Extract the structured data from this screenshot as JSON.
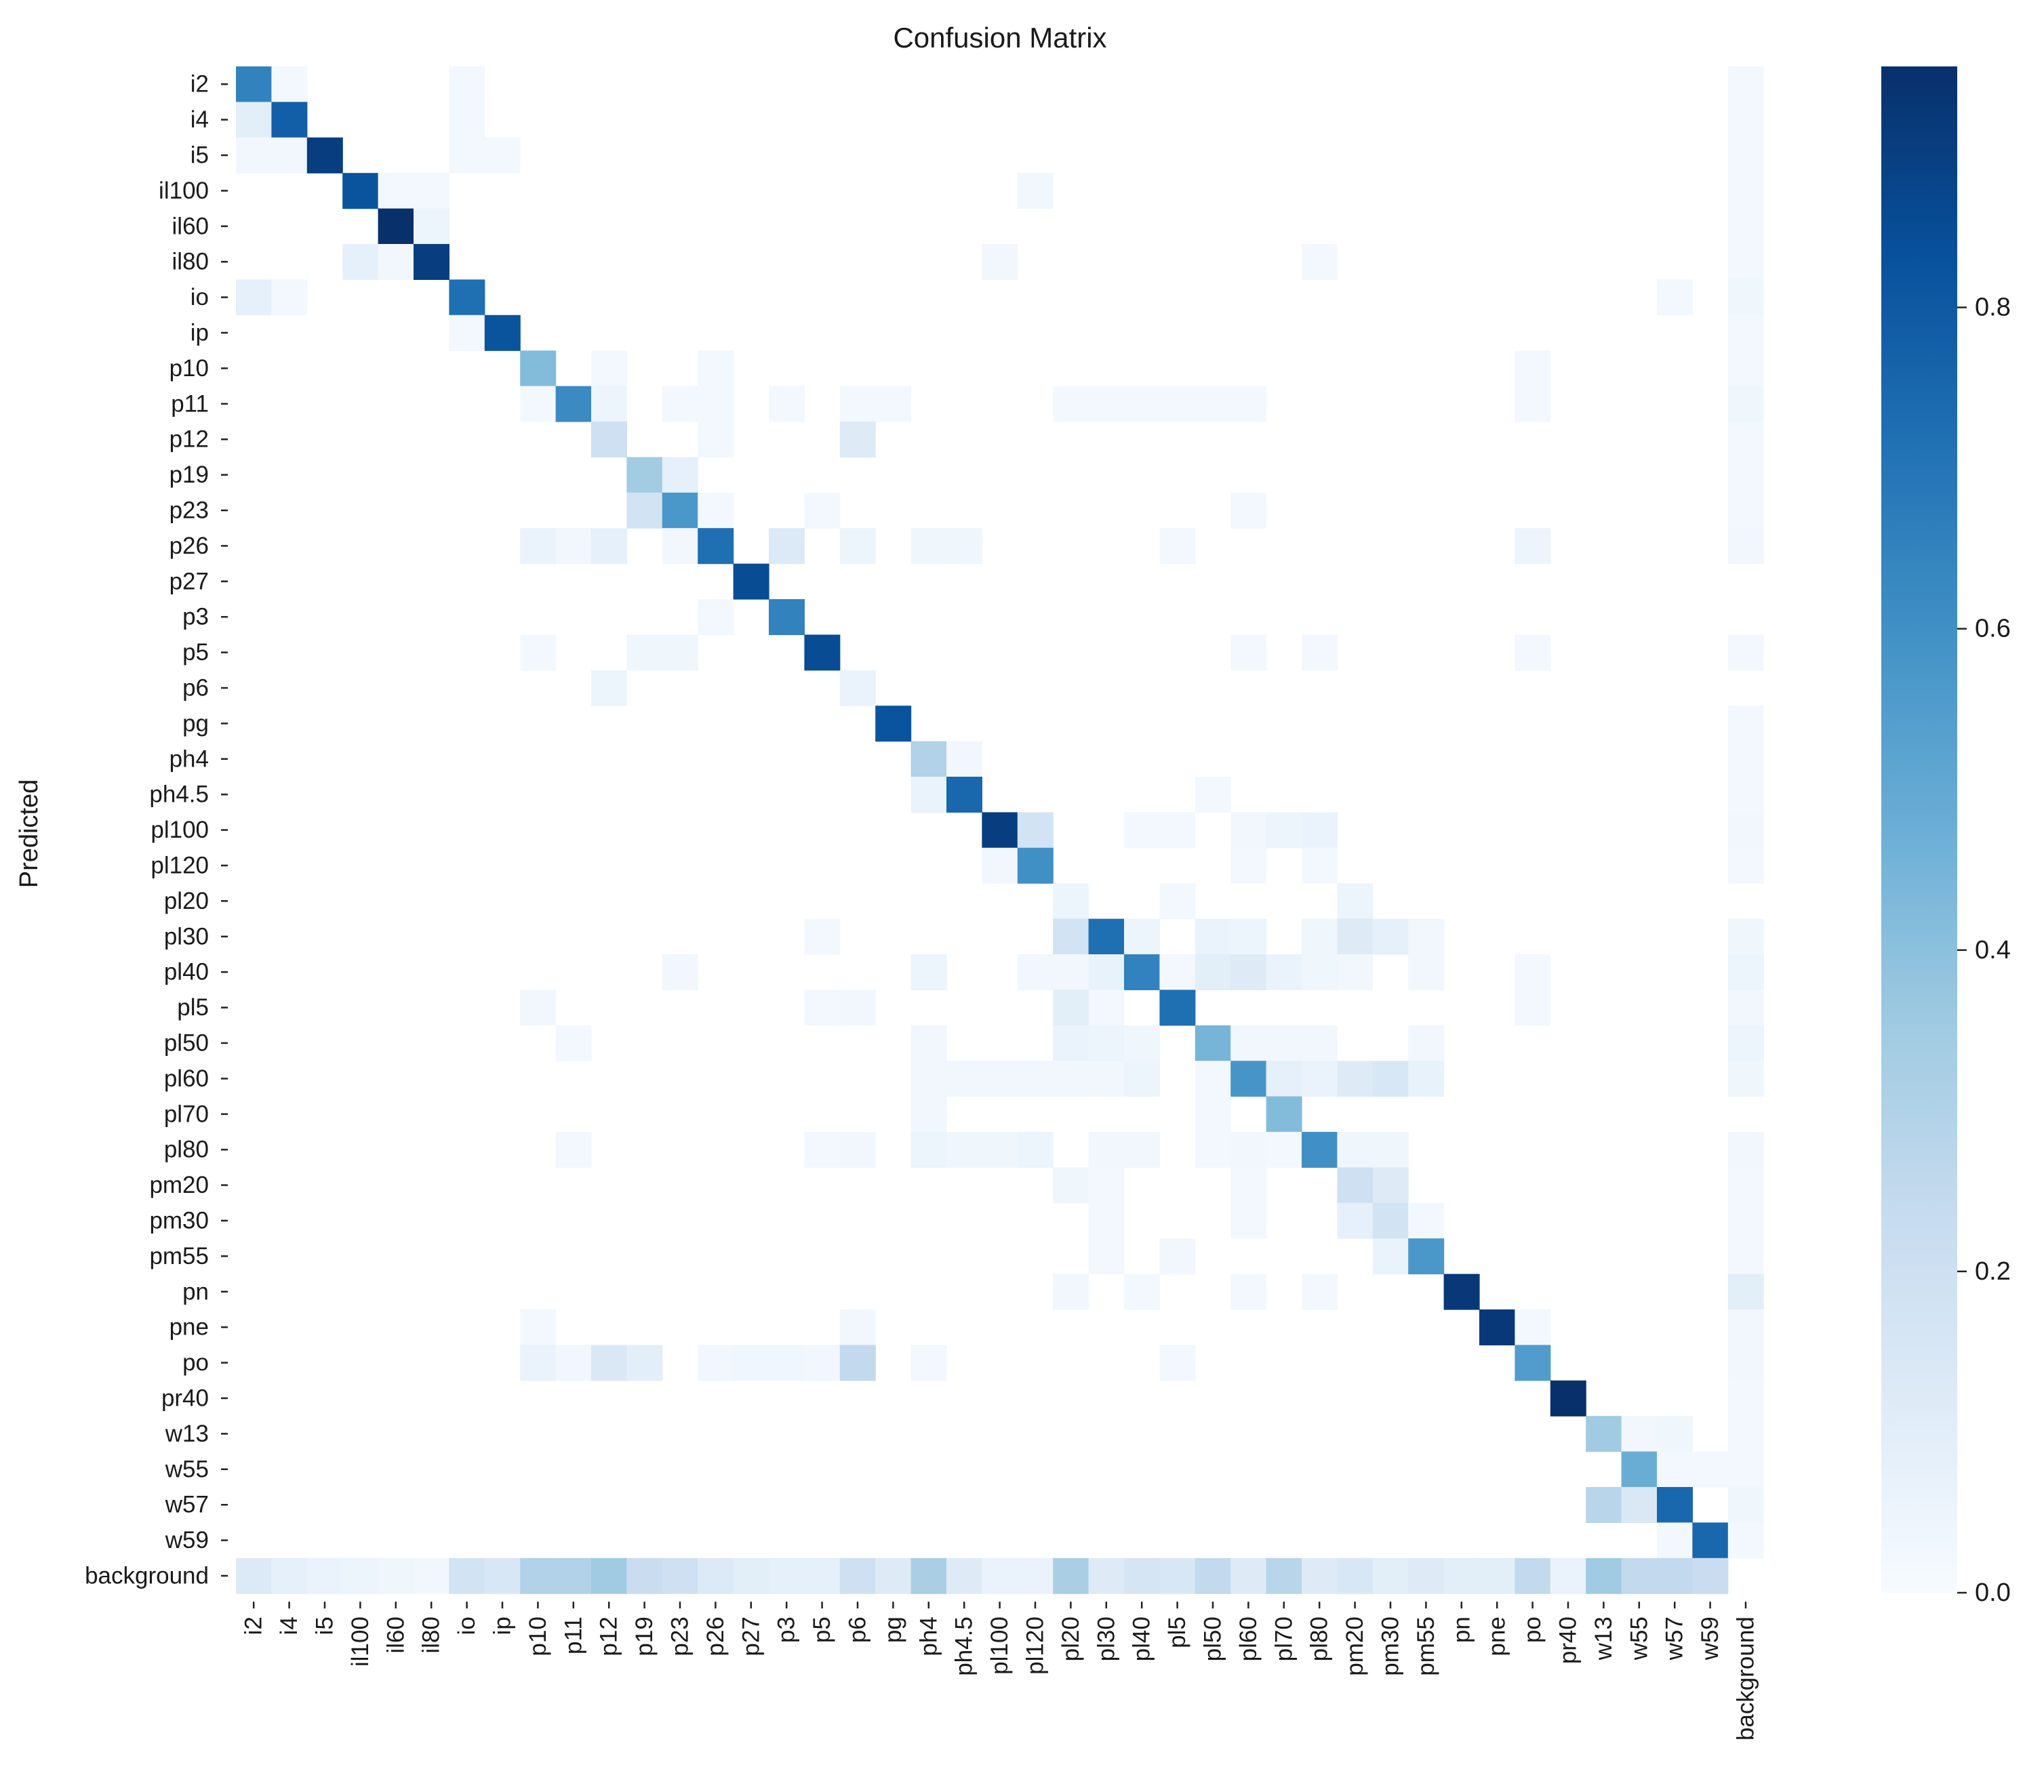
{
  "chart_data": {
    "type": "heatmap",
    "title": "Confusion Matrix",
    "ylabel": "Predicted",
    "xlabel": "",
    "colormap": "Blues",
    "vmin": 0.0,
    "vmax": 0.95,
    "colorbar_ticks": [
      0.0,
      0.2,
      0.4,
      0.6,
      0.8
    ],
    "colorbar_tick_labels": [
      "0.0",
      "0.2",
      "0.4",
      "0.6",
      "0.8"
    ],
    "labels": [
      "i2",
      "i4",
      "i5",
      "il100",
      "il60",
      "il80",
      "io",
      "ip",
      "p10",
      "p11",
      "p12",
      "p19",
      "p23",
      "p26",
      "p27",
      "p3",
      "p5",
      "p6",
      "pg",
      "ph4",
      "ph4.5",
      "pl100",
      "pl120",
      "pl20",
      "pl30",
      "pl40",
      "pl5",
      "pl50",
      "pl60",
      "pl70",
      "pl80",
      "pm20",
      "pm30",
      "pm55",
      "pn",
      "pne",
      "po",
      "pr40",
      "w13",
      "w55",
      "w57",
      "w59",
      "background"
    ],
    "diagonal": [
      0.65,
      0.78,
      0.9,
      0.82,
      0.95,
      0.9,
      0.72,
      0.82,
      0.42,
      0.62,
      0.2,
      0.34,
      0.57,
      0.72,
      0.85,
      0.65,
      0.85,
      0.06,
      0.82,
      0.3,
      0.75,
      0.9,
      0.6,
      0.05,
      0.72,
      0.65,
      0.72,
      0.45,
      0.58,
      0.42,
      0.6,
      0.2,
      0.18,
      0.57,
      0.92,
      0.92,
      0.55,
      0.95,
      0.35,
      0.48,
      0.75,
      0.75,
      0
    ],
    "off_diagonal": [
      [
        0,
        1,
        0.02
      ],
      [
        0,
        6,
        0.02
      ],
      [
        1,
        0,
        0.1
      ],
      [
        1,
        6,
        0.02
      ],
      [
        2,
        0,
        0.03
      ],
      [
        2,
        1,
        0.03
      ],
      [
        2,
        6,
        0.02
      ],
      [
        2,
        7,
        0.02
      ],
      [
        3,
        4,
        0.02
      ],
      [
        3,
        5,
        0.02
      ],
      [
        3,
        22,
        0.03
      ],
      [
        4,
        5,
        0.05
      ],
      [
        5,
        3,
        0.08
      ],
      [
        5,
        4,
        0.03
      ],
      [
        5,
        21,
        0.03
      ],
      [
        5,
        30,
        0.02
      ],
      [
        6,
        0,
        0.08
      ],
      [
        6,
        1,
        0.02
      ],
      [
        6,
        40,
        0.02
      ],
      [
        7,
        6,
        0.02
      ],
      [
        8,
        10,
        0.02
      ],
      [
        8,
        13,
        0.02
      ],
      [
        8,
        36,
        0.02
      ],
      [
        9,
        8,
        0.02
      ],
      [
        9,
        10,
        0.05
      ],
      [
        9,
        12,
        0.02
      ],
      [
        9,
        13,
        0.02
      ],
      [
        9,
        15,
        0.02
      ],
      [
        9,
        17,
        0.02
      ],
      [
        9,
        18,
        0.02
      ],
      [
        9,
        23,
        0.02
      ],
      [
        9,
        24,
        0.02
      ],
      [
        9,
        25,
        0.02
      ],
      [
        9,
        26,
        0.02
      ],
      [
        9,
        27,
        0.02
      ],
      [
        9,
        28,
        0.02
      ],
      [
        9,
        36,
        0.02
      ],
      [
        10,
        13,
        0.02
      ],
      [
        10,
        17,
        0.12
      ],
      [
        11,
        12,
        0.08
      ],
      [
        12,
        11,
        0.18
      ],
      [
        12,
        13,
        0.02
      ],
      [
        12,
        16,
        0.02
      ],
      [
        12,
        28,
        0.02
      ],
      [
        13,
        8,
        0.06
      ],
      [
        13,
        9,
        0.03
      ],
      [
        13,
        10,
        0.08
      ],
      [
        13,
        12,
        0.03
      ],
      [
        13,
        15,
        0.13
      ],
      [
        13,
        17,
        0.05
      ],
      [
        13,
        19,
        0.04
      ],
      [
        13,
        20,
        0.04
      ],
      [
        13,
        26,
        0.02
      ],
      [
        13,
        36,
        0.05
      ],
      [
        15,
        13,
        0.02
      ],
      [
        16,
        8,
        0.02
      ],
      [
        16,
        11,
        0.04
      ],
      [
        16,
        12,
        0.04
      ],
      [
        16,
        28,
        0.02
      ],
      [
        16,
        30,
        0.02
      ],
      [
        16,
        36,
        0.02
      ],
      [
        17,
        10,
        0.05
      ],
      [
        19,
        20,
        0.03
      ],
      [
        20,
        19,
        0.06
      ],
      [
        20,
        27,
        0.02
      ],
      [
        21,
        22,
        0.18
      ],
      [
        21,
        25,
        0.02
      ],
      [
        21,
        26,
        0.02
      ],
      [
        21,
        28,
        0.03
      ],
      [
        21,
        29,
        0.05
      ],
      [
        21,
        30,
        0.06
      ],
      [
        22,
        21,
        0.03
      ],
      [
        22,
        28,
        0.02
      ],
      [
        22,
        30,
        0.02
      ],
      [
        23,
        26,
        0.02
      ],
      [
        23,
        31,
        0.05
      ],
      [
        24,
        16,
        0.02
      ],
      [
        24,
        23,
        0.18
      ],
      [
        24,
        25,
        0.05
      ],
      [
        24,
        27,
        0.06
      ],
      [
        24,
        28,
        0.05
      ],
      [
        24,
        30,
        0.04
      ],
      [
        24,
        31,
        0.12
      ],
      [
        24,
        32,
        0.08
      ],
      [
        24,
        33,
        0.03
      ],
      [
        25,
        12,
        0.03
      ],
      [
        25,
        19,
        0.05
      ],
      [
        25,
        22,
        0.03
      ],
      [
        25,
        23,
        0.03
      ],
      [
        25,
        24,
        0.07
      ],
      [
        25,
        26,
        0.02
      ],
      [
        25,
        27,
        0.1
      ],
      [
        25,
        28,
        0.12
      ],
      [
        25,
        29,
        0.06
      ],
      [
        25,
        30,
        0.04
      ],
      [
        25,
        31,
        0.03
      ],
      [
        25,
        33,
        0.03
      ],
      [
        25,
        36,
        0.02
      ],
      [
        26,
        8,
        0.03
      ],
      [
        26,
        16,
        0.02
      ],
      [
        26,
        17,
        0.03
      ],
      [
        26,
        23,
        0.1
      ],
      [
        26,
        24,
        0.02
      ],
      [
        26,
        36,
        0.02
      ],
      [
        27,
        9,
        0.02
      ],
      [
        27,
        19,
        0.03
      ],
      [
        27,
        23,
        0.06
      ],
      [
        27,
        24,
        0.05
      ],
      [
        27,
        25,
        0.04
      ],
      [
        27,
        28,
        0.03
      ],
      [
        27,
        29,
        0.03
      ],
      [
        27,
        30,
        0.03
      ],
      [
        27,
        33,
        0.03
      ],
      [
        28,
        19,
        0.03
      ],
      [
        28,
        20,
        0.03
      ],
      [
        28,
        21,
        0.03
      ],
      [
        28,
        22,
        0.03
      ],
      [
        28,
        23,
        0.03
      ],
      [
        28,
        24,
        0.03
      ],
      [
        28,
        25,
        0.05
      ],
      [
        28,
        27,
        0.02
      ],
      [
        28,
        29,
        0.08
      ],
      [
        28,
        30,
        0.06
      ],
      [
        28,
        31,
        0.12
      ],
      [
        28,
        32,
        0.15
      ],
      [
        28,
        33,
        0.07
      ],
      [
        29,
        19,
        0.03
      ],
      [
        29,
        27,
        0.02
      ],
      [
        30,
        9,
        0.02
      ],
      [
        30,
        16,
        0.02
      ],
      [
        30,
        17,
        0.03
      ],
      [
        30,
        19,
        0.05
      ],
      [
        30,
        20,
        0.04
      ],
      [
        30,
        21,
        0.04
      ],
      [
        30,
        22,
        0.05
      ],
      [
        30,
        24,
        0.03
      ],
      [
        30,
        25,
        0.03
      ],
      [
        30,
        27,
        0.02
      ],
      [
        30,
        28,
        0.03
      ],
      [
        30,
        29,
        0.02
      ],
      [
        30,
        31,
        0.04
      ],
      [
        30,
        32,
        0.04
      ],
      [
        31,
        23,
        0.04
      ],
      [
        31,
        24,
        0.02
      ],
      [
        31,
        28,
        0.02
      ],
      [
        31,
        32,
        0.12
      ],
      [
        32,
        24,
        0.02
      ],
      [
        32,
        28,
        0.02
      ],
      [
        32,
        31,
        0.08
      ],
      [
        32,
        33,
        0.02
      ],
      [
        33,
        24,
        0.02
      ],
      [
        33,
        26,
        0.03
      ],
      [
        33,
        32,
        0.06
      ],
      [
        34,
        23,
        0.03
      ],
      [
        34,
        25,
        0.02
      ],
      [
        34,
        28,
        0.02
      ],
      [
        34,
        30,
        0.02
      ],
      [
        35,
        8,
        0.02
      ],
      [
        35,
        17,
        0.03
      ],
      [
        35,
        36,
        0.02
      ],
      [
        36,
        8,
        0.06
      ],
      [
        36,
        9,
        0.03
      ],
      [
        36,
        10,
        0.14
      ],
      [
        36,
        11,
        0.1
      ],
      [
        36,
        13,
        0.03
      ],
      [
        36,
        14,
        0.04
      ],
      [
        36,
        15,
        0.04
      ],
      [
        36,
        16,
        0.03
      ],
      [
        36,
        17,
        0.25
      ],
      [
        36,
        19,
        0.02
      ],
      [
        36,
        26,
        0.02
      ],
      [
        38,
        39,
        0.03
      ],
      [
        38,
        40,
        0.04
      ],
      [
        39,
        40,
        0.02
      ],
      [
        39,
        41,
        0.02
      ],
      [
        40,
        38,
        0.28
      ],
      [
        40,
        39,
        0.14
      ],
      [
        41,
        40,
        0.02
      ]
    ],
    "background_column": [
      0.02,
      0.02,
      0.02,
      0.02,
      0.02,
      0.02,
      0.04,
      0.02,
      0.02,
      0.04,
      0.02,
      0.02,
      0.02,
      0.03,
      0,
      0,
      0.02,
      0,
      0.02,
      0.02,
      0.02,
      0.03,
      0.02,
      0,
      0.04,
      0.05,
      0.03,
      0.05,
      0.04,
      0,
      0.03,
      0.02,
      0.02,
      0.02,
      0.1,
      0.03,
      0.03,
      0.02,
      0.02,
      0.02,
      0.04,
      0.02,
      0
    ],
    "background_row": [
      0.13,
      0.08,
      0.06,
      0.05,
      0.04,
      0.03,
      0.18,
      0.15,
      0.3,
      0.3,
      0.35,
      0.22,
      0.2,
      0.13,
      0.1,
      0.08,
      0.08,
      0.2,
      0.12,
      0.32,
      0.12,
      0.06,
      0.06,
      0.32,
      0.12,
      0.16,
      0.15,
      0.25,
      0.12,
      0.28,
      0.12,
      0.15,
      0.1,
      0.12,
      0.1,
      0.1,
      0.25,
      0.06,
      0.35,
      0.25,
      0.25,
      0.22,
      0
    ]
  }
}
